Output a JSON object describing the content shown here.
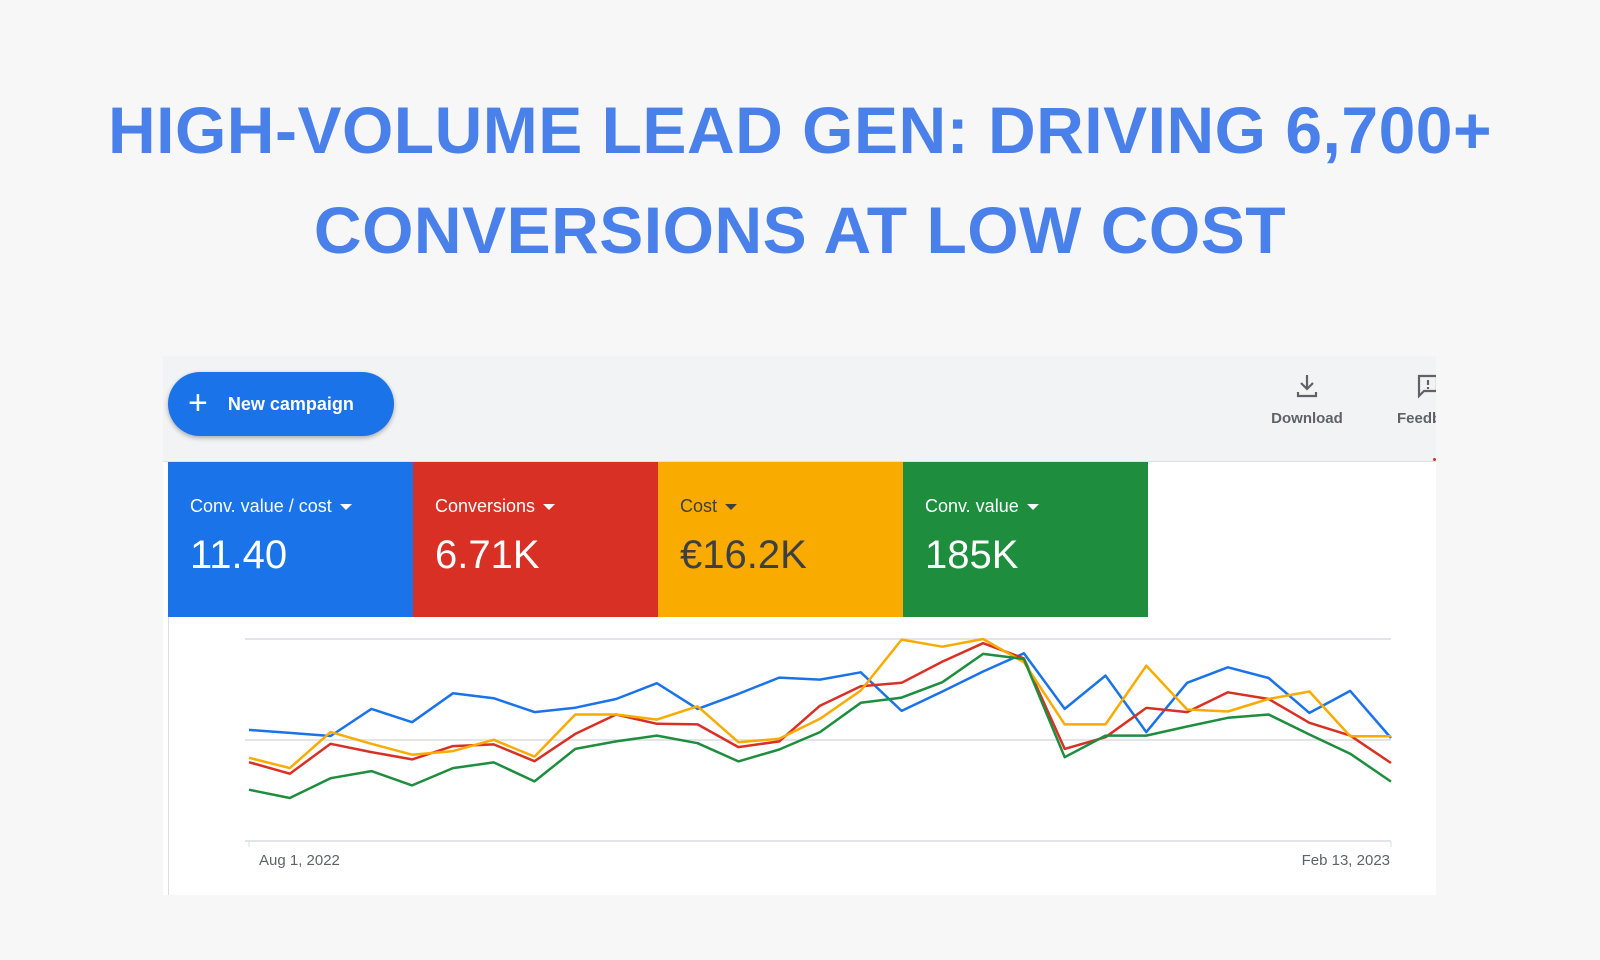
{
  "headline": {
    "line1": "HIGH-VOLUME LEAD GEN: DRIVING 6,700+",
    "line2": "CONVERSIONS AT LOW COST"
  },
  "toolbar": {
    "new_campaign_label": "New campaign",
    "download_label": "Download",
    "feedback_label": "Feedb"
  },
  "metrics": [
    {
      "label": "Conv. value / cost",
      "value": "11.40",
      "color": "#1a73e8",
      "text_color": "#ffffff"
    },
    {
      "label": "Conversions",
      "value": "6.71K",
      "color": "#d93025",
      "text_color": "#ffffff"
    },
    {
      "label": "Cost",
      "value": "€16.2K",
      "color": "#f9ab00",
      "text_color": "#3c4043"
    },
    {
      "label": "Conv. value",
      "value": "185K",
      "color": "#1e8e3e",
      "text_color": "#ffffff"
    }
  ],
  "chart_data": {
    "type": "line",
    "x_start_label": "Aug 1, 2022",
    "x_end_label": "Feb 13, 2023",
    "points": 29,
    "ylim": [
      0,
      100
    ],
    "grid": true,
    "series": [
      {
        "name": "Conv. value / cost",
        "color": "#1a73e8",
        "values": [
          55,
          53.5,
          52,
          65.4,
          58.8,
          73.1,
          70.7,
          63.8,
          66,
          70.3,
          78.1,
          65.4,
          72.8,
          80.9,
          79.9,
          83.5,
          64.4,
          74,
          83.9,
          92.9,
          65.4,
          81.9,
          53.9,
          78.3,
          86,
          80.7,
          63.4,
          74.3,
          51
        ]
      },
      {
        "name": "Conversions",
        "color": "#d93025",
        "values": [
          39,
          33.3,
          48.1,
          44,
          40.4,
          47,
          47.8,
          39.5,
          53,
          62.6,
          58,
          57.7,
          46.5,
          49.3,
          67,
          76.6,
          78.3,
          88.8,
          97.9,
          90.4,
          45.6,
          51.4,
          65.9,
          63.8,
          73.6,
          70.3,
          58.5,
          52.2,
          38.6
        ]
      },
      {
        "name": "Cost",
        "color": "#f9ab00",
        "values": [
          41.2,
          36.1,
          53.9,
          48.1,
          42.7,
          44.5,
          50.1,
          41.8,
          62.6,
          62.6,
          60.1,
          66.7,
          48.9,
          50.6,
          60.5,
          74.5,
          99.7,
          96.2,
          100,
          88.5,
          57.7,
          57.7,
          86.8,
          65.1,
          64.1,
          70.3,
          74,
          51.9,
          51.9
        ]
      },
      {
        "name": "Conv. value",
        "color": "#1e8e3e",
        "values": [
          25.4,
          21.3,
          31.1,
          34.6,
          27.5,
          36.1,
          38.9,
          29.5,
          45.6,
          49.3,
          52.2,
          48.4,
          39.4,
          45.3,
          53.9,
          68.4,
          71,
          78.6,
          92.6,
          90.1,
          41.5,
          52.2,
          52.2,
          56.7,
          61,
          62.6,
          52.7,
          43.2,
          29.4
        ]
      }
    ]
  }
}
